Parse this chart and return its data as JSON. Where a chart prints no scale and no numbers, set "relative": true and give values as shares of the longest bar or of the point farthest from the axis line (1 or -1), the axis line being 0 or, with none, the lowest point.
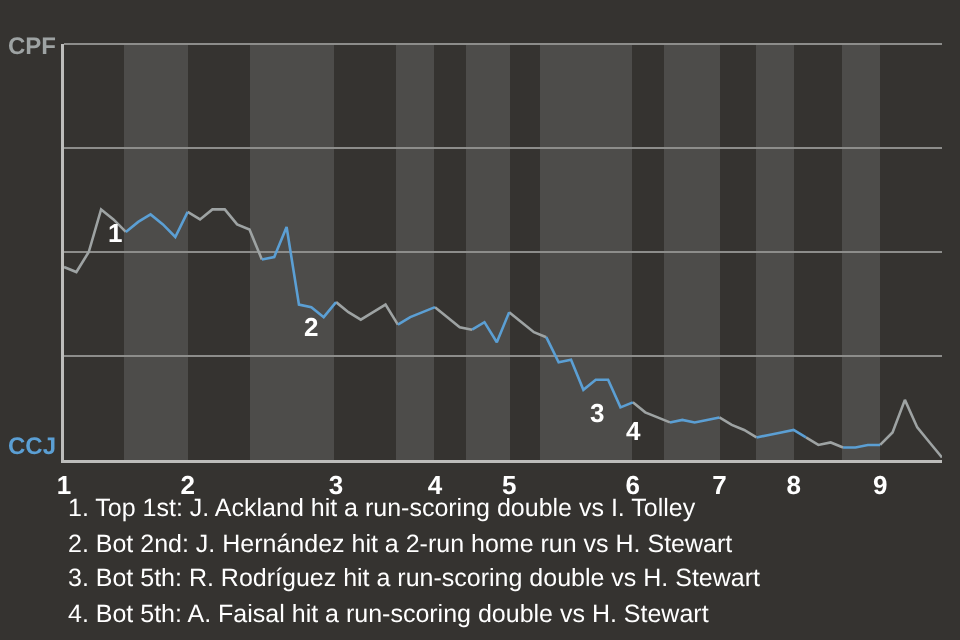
{
  "chart_data": {
    "type": "line",
    "relative": true,
    "legend": false,
    "marker": "none",
    "line_style": "solid",
    "categories": [
      "1",
      null,
      null,
      null,
      null,
      null,
      null,
      null,
      null,
      null,
      "2",
      null,
      null,
      null,
      null,
      null,
      null,
      null,
      null,
      null,
      null,
      null,
      "3",
      null,
      null,
      null,
      null,
      null,
      null,
      null,
      "4",
      null,
      null,
      null,
      null,
      null,
      "5",
      null,
      null,
      null,
      null,
      null,
      null,
      null,
      null,
      null,
      "6",
      null,
      null,
      null,
      null,
      null,
      null,
      "7",
      null,
      null,
      null,
      null,
      null,
      "8",
      null,
      null,
      null,
      null,
      null,
      null,
      "9",
      null,
      null,
      null,
      null,
      null
    ],
    "series": [
      {
        "name": "CPF",
        "color": "#9ea3a3",
        "values": [
          0.77,
          0.75,
          0.83,
          1.0,
          0.96,
          0.91,
          null,
          null,
          null,
          null,
          0.99,
          0.96,
          1.0,
          1.0,
          0.94,
          0.92,
          0.8,
          null,
          null,
          null,
          null,
          null,
          0.63,
          0.59,
          0.56,
          0.59,
          0.62,
          0.54,
          null,
          null,
          0.61,
          0.57,
          0.53,
          0.52,
          null,
          null,
          0.59,
          0.55,
          0.51,
          0.49,
          null,
          null,
          null,
          null,
          null,
          null,
          0.23,
          0.19,
          0.17,
          0.15,
          null,
          null,
          null,
          0.17,
          0.14,
          0.12,
          0.09,
          null,
          null,
          null,
          0.09,
          0.06,
          0.07,
          0.05,
          null,
          null,
          0.06,
          0.11,
          0.24,
          0.13,
          0.07,
          0.01
        ]
      },
      {
        "name": "CCJ",
        "color": "#5b9fd4",
        "values": [
          null,
          null,
          null,
          null,
          null,
          0.91,
          0.95,
          0.98,
          0.94,
          0.89,
          0.99,
          null,
          null,
          null,
          null,
          null,
          0.8,
          0.81,
          0.93,
          0.62,
          0.61,
          0.57,
          0.63,
          null,
          null,
          null,
          null,
          0.54,
          0.57,
          0.59,
          0.61,
          null,
          null,
          0.52,
          0.55,
          0.47,
          0.59,
          null,
          null,
          0.49,
          0.39,
          0.4,
          0.28,
          0.32,
          0.32,
          0.21,
          0.23,
          null,
          null,
          0.15,
          0.16,
          0.15,
          0.16,
          0.17,
          null,
          null,
          0.09,
          0.1,
          0.11,
          0.12,
          0.09,
          null,
          null,
          0.05,
          0.05,
          0.06,
          0.06,
          null,
          null,
          null,
          null,
          null
        ]
      }
    ],
    "ref_lines": [
      {
        "axis": "y",
        "value": 0.415,
        "color": "#8d8d8b"
      },
      {
        "axis": "y",
        "value": 0.83,
        "color": "#8d8d8b"
      },
      {
        "axis": "y",
        "value": 1.245,
        "color": "#8d8d8b"
      }
    ],
    "annotations": [
      {
        "text": "1",
        "y": 1.0
      },
      {
        "text": "2",
        "y": 0.62
      },
      {
        "text": "3",
        "y": 0.28
      },
      {
        "text": "4",
        "y": 0.21
      },
      "1. Top 1st: J. Ackland hit a run-scoring double vs I. Tolley",
      "2. Bot 2nd: J. Hernández hit a 2-run home run vs H. Stewart",
      "3. Bot 5th: R. Rodríguez hit a run-scoring double vs H. Stewart",
      "4. Bot 5th: A. Faisal hit a run-scoring double vs H. Stewart"
    ]
  }
}
